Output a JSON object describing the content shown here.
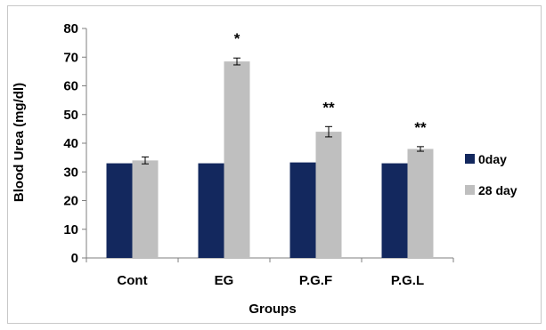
{
  "chart_data": {
    "type": "bar",
    "categories": [
      "Cont",
      "EG",
      "P.G.F",
      "P.G.L"
    ],
    "series": [
      {
        "name": "0day",
        "color": "#13285e",
        "values": [
          33,
          33,
          33.3,
          33
        ],
        "errors": [
          0,
          0,
          0,
          0
        ]
      },
      {
        "name": "28 day",
        "color": "#bfbfbf",
        "values": [
          34,
          68.5,
          44,
          38
        ],
        "errors": [
          1.2,
          1.2,
          1.8,
          0.8
        ]
      }
    ],
    "annotations": [
      "",
      "*",
      "**",
      "**"
    ],
    "xlabel": "Groups",
    "ylabel": "Blood Urea (mg/dl)",
    "ylim": [
      0,
      80
    ],
    "yticks": [
      0,
      10,
      20,
      30,
      40,
      50,
      60,
      70,
      80
    ],
    "grid": false,
    "legend_position": "right"
  }
}
